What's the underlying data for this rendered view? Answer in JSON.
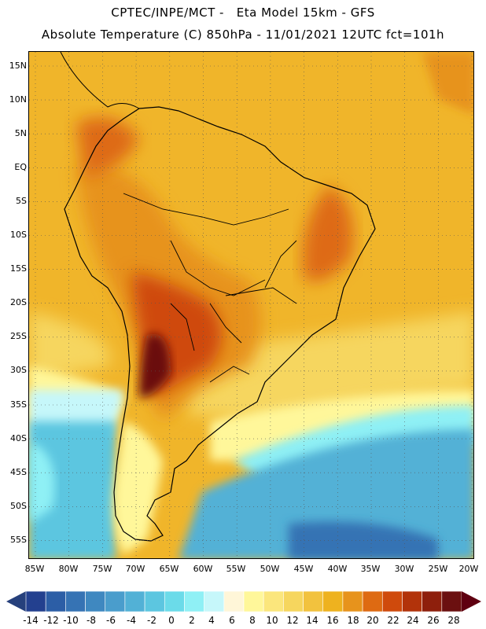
{
  "header": {
    "line1": "CPTEC/INPE/MCT -   Eta Model 15km - GFS",
    "line2": "Absolute Temperature (C) 850hPa - 11/01/2021 12UTC fct=101h"
  },
  "axes": {
    "lat_labels": [
      "15N",
      "10N",
      "5N",
      "EQ",
      "5S",
      "10S",
      "15S",
      "20S",
      "25S",
      "30S",
      "35S",
      "40S",
      "45S",
      "50S",
      "55S"
    ],
    "lon_labels": [
      "85W",
      "80W",
      "75W",
      "70W",
      "65W",
      "60W",
      "55W",
      "50W",
      "45W",
      "40W",
      "35W",
      "30W",
      "25W",
      "20W"
    ]
  },
  "colorbar": {
    "labels": [
      "-14",
      "-12",
      "-10",
      "-8",
      "-6",
      "-4",
      "-2",
      "0",
      "2",
      "4",
      "6",
      "8",
      "10",
      "12",
      "14",
      "16",
      "18",
      "20",
      "22",
      "24",
      "26",
      "28"
    ],
    "colors": [
      "#23408f",
      "#2c5ea6",
      "#3673b4",
      "#3f88c0",
      "#4a9dcc",
      "#52b1d6",
      "#5cc6e0",
      "#6bdbe9",
      "#8ff0f5",
      "#c6f7fa",
      "#fff6d8",
      "#fff79a",
      "#fbe67c",
      "#f6d65e",
      "#f2c23e",
      "#eeb21f",
      "#e7931c",
      "#de6a12",
      "#cf4a0c",
      "#b2330a",
      "#8e1f0c",
      "#6b1010"
    ],
    "left_arrow_color": "#26407c",
    "right_arrow_color": "#5f0010"
  }
}
